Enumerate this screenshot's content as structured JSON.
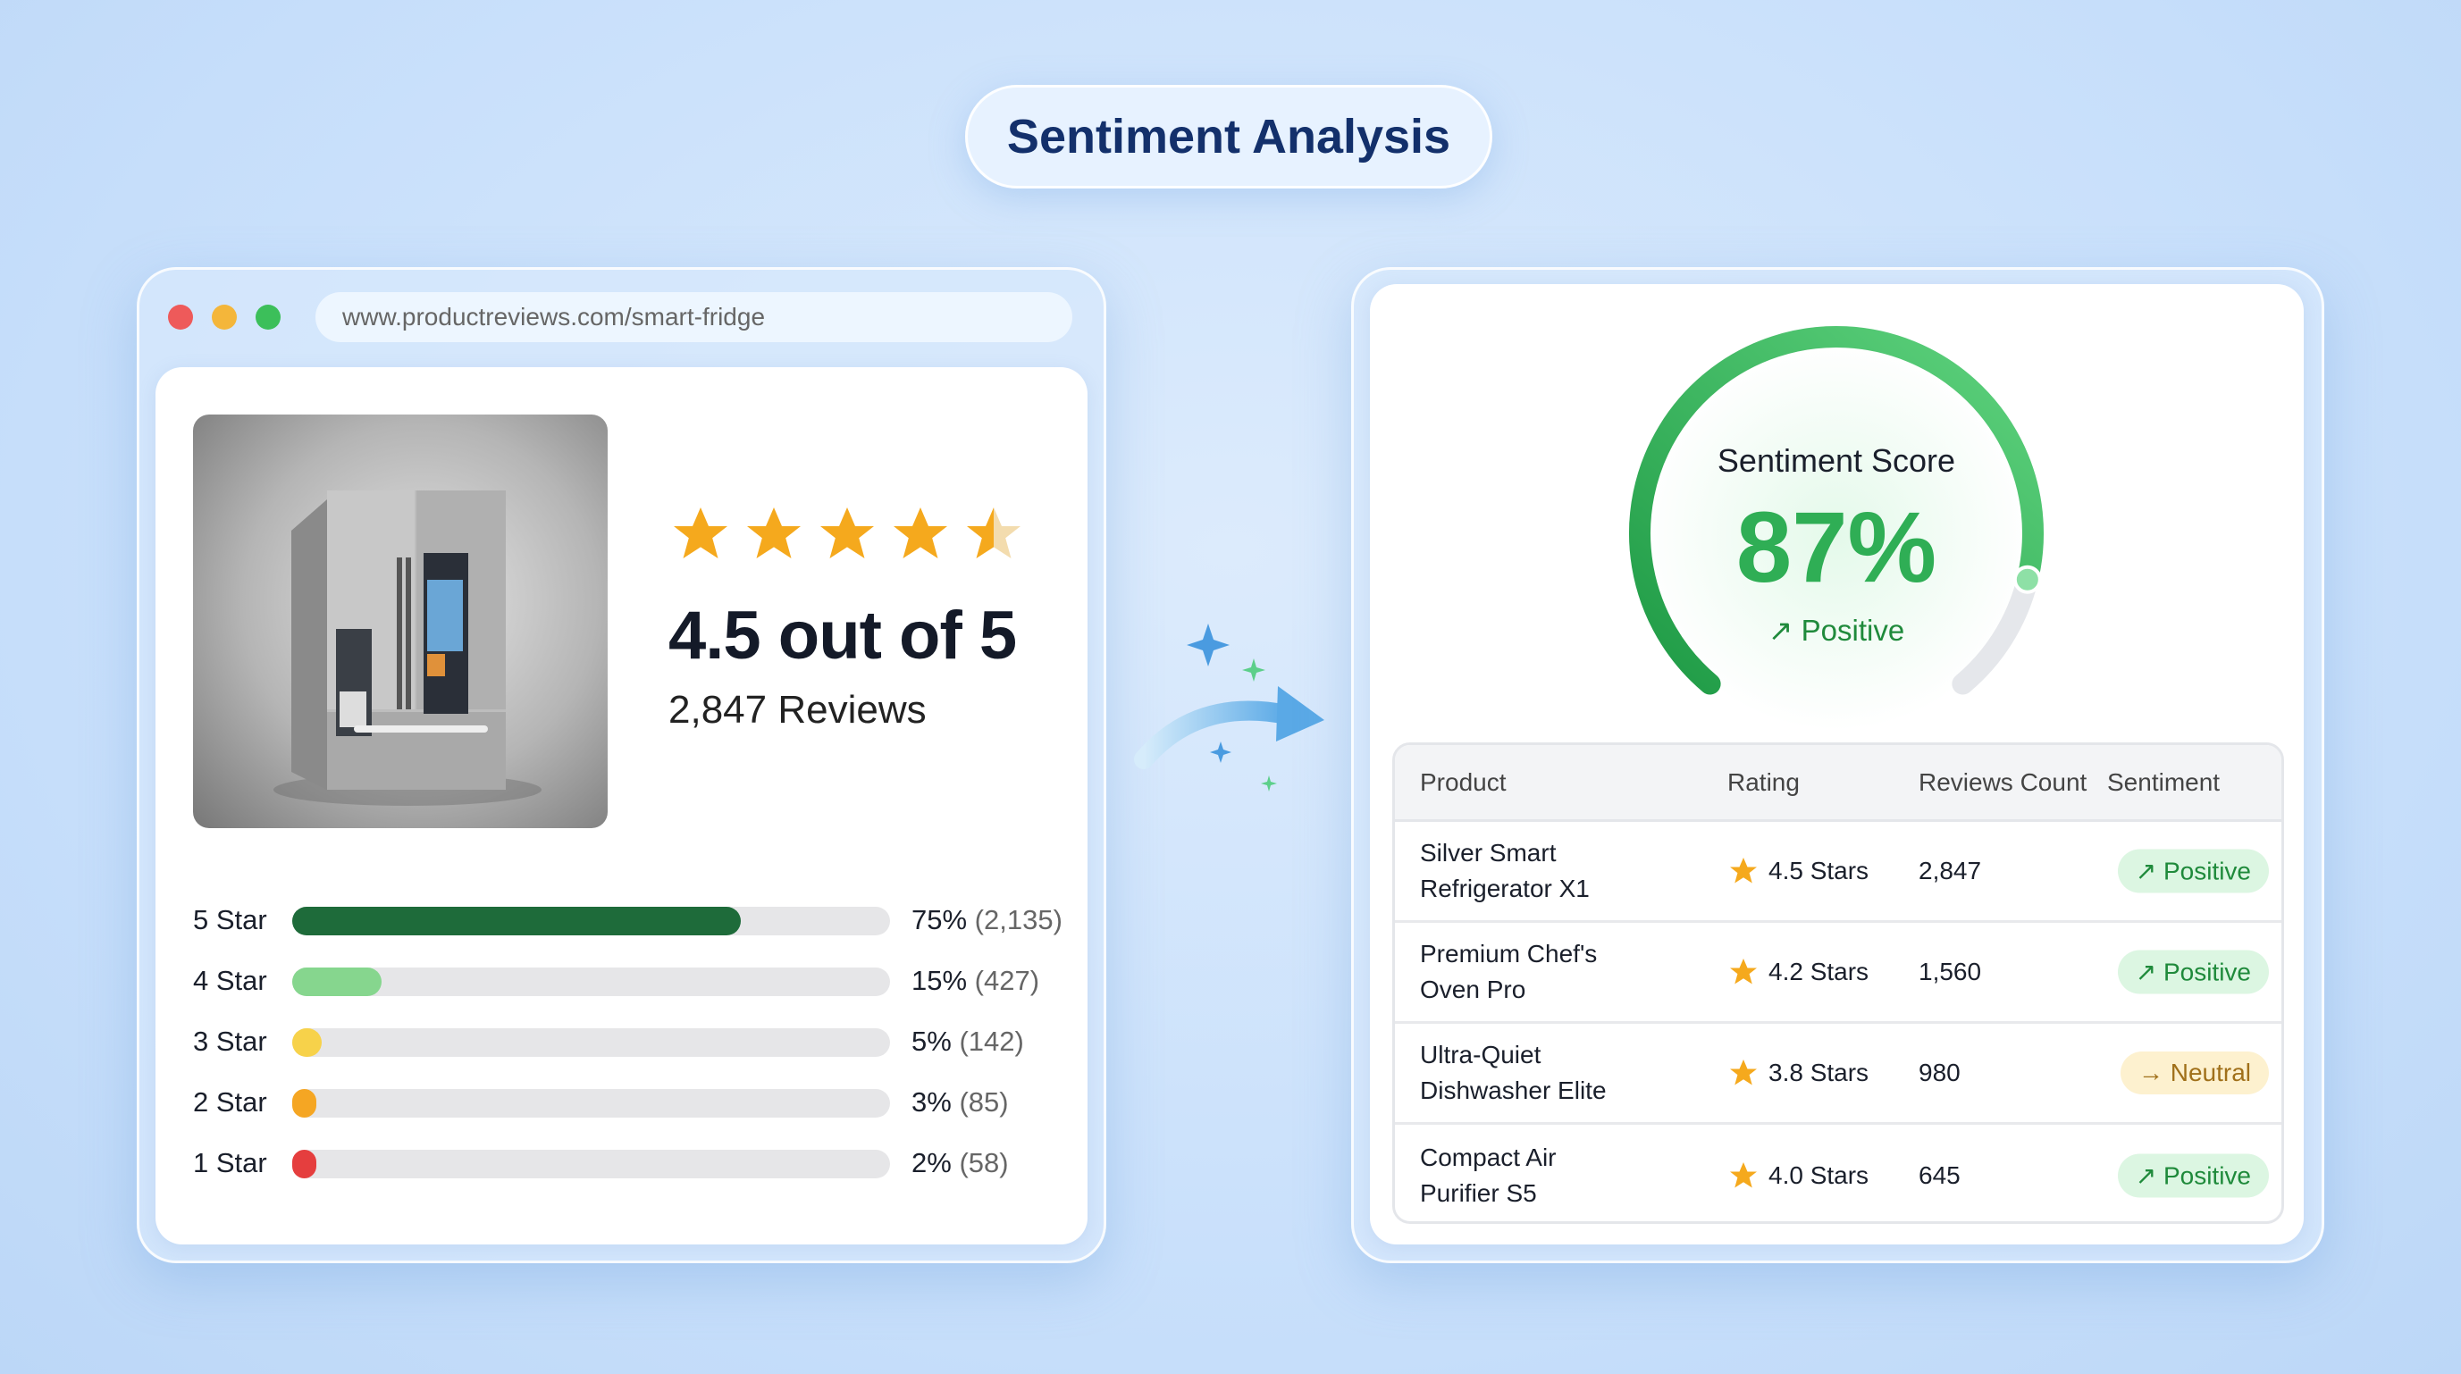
{
  "title": "Sentiment Analysis",
  "browser": {
    "url": "www.productreviews.com/smart-fridge"
  },
  "product": {
    "rating": 4.5,
    "rating_text": "4.5 out of 5",
    "reviews_text": "2,847 Reviews",
    "image_alt": "Stainless steel smart refrigerator"
  },
  "distribution": [
    {
      "label": "5 Star",
      "percent": 75,
      "pct_text": "75%",
      "count_text": "(2,135)",
      "color": "#1e6b3a"
    },
    {
      "label": "4 Star",
      "percent": 15,
      "pct_text": "15%",
      "count_text": "(427)",
      "color": "#86d68e"
    },
    {
      "label": "3 Star",
      "percent": 5,
      "pct_text": "5%",
      "count_text": "(142)",
      "color": "#f7d24a"
    },
    {
      "label": "2 Star",
      "percent": 3,
      "pct_text": "3%",
      "count_text": "(85)",
      "color": "#f5a623"
    },
    {
      "label": "1 Star",
      "percent": 2,
      "pct_text": "2%",
      "count_text": "(58)",
      "color": "#e53e3e"
    }
  ],
  "gauge": {
    "label": "Sentiment Score",
    "value": 87,
    "value_text": "87%",
    "status": "Positive",
    "status_icon": "arrow-up-right-icon",
    "color": "#2fb35a"
  },
  "table": {
    "headers": [
      "Product",
      "Rating",
      "Reviews Count",
      "Sentiment"
    ],
    "rows": [
      {
        "product_l1": "Silver Smart",
        "product_l2": "Refrigerator X1",
        "rating": "4.5 Stars",
        "count": "2,847",
        "sentiment": "↗ Positive",
        "type": "pos"
      },
      {
        "product_l1": "Premium Chef's",
        "product_l2": "Oven Pro",
        "rating": "4.2 Stars",
        "count": "1,560",
        "sentiment": "↗ Positive",
        "type": "pos"
      },
      {
        "product_l1": "Ultra-Quiet",
        "product_l2": "Dishwasher Elite",
        "rating": "3.8 Stars",
        "count": "980",
        "sentiment": "→ Neutral",
        "type": "neu"
      },
      {
        "product_l1": "Compact Air",
        "product_l2": "Purifier S5",
        "rating": "4.0 Stars",
        "count": "645",
        "sentiment": "↗ Positive",
        "type": "pos"
      }
    ]
  },
  "colors": {
    "star": "#f5a91d",
    "positive": "#1f8a3b",
    "neutral": "#a0701a",
    "title": "#13306b"
  }
}
